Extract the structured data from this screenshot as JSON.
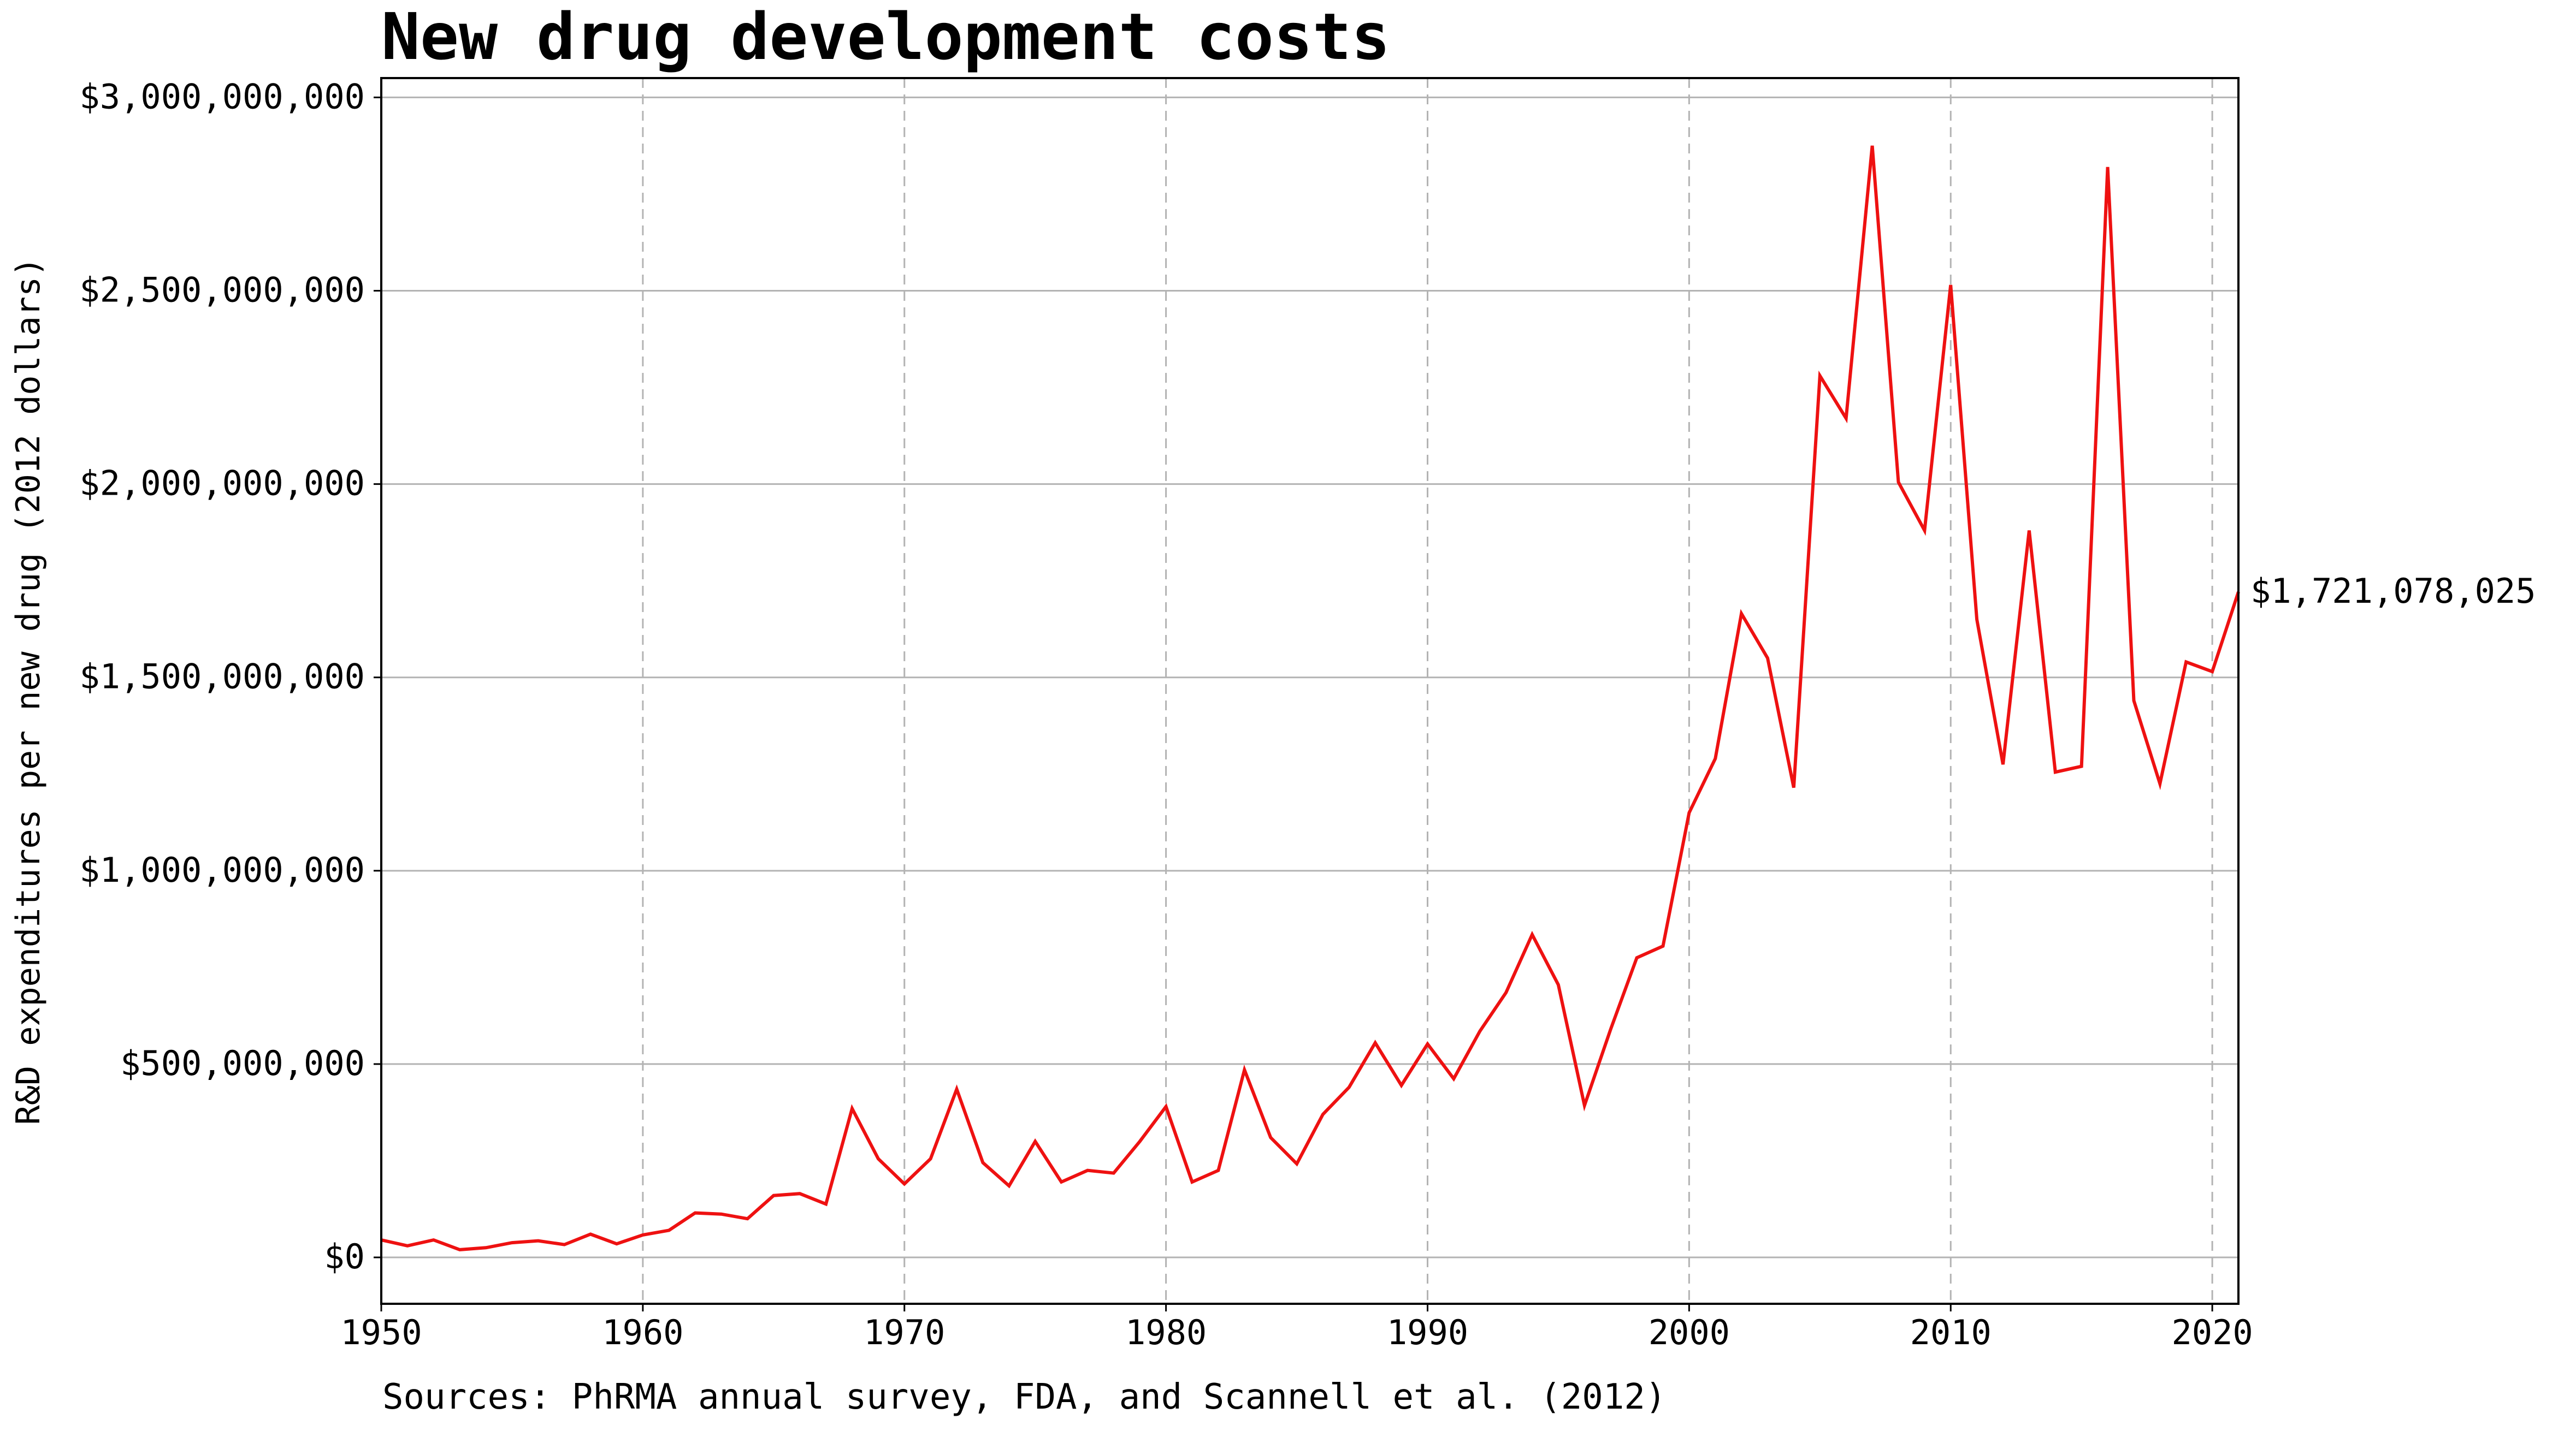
{
  "chart_data": {
    "type": "line",
    "title": "New drug development costs",
    "ylabel": "R&D expenditures per new drug (2012 dollars)",
    "xlabel": "",
    "source": "Sources: PhRMA annual survey, FDA, and Scannell et al. (2012)",
    "xlim": [
      1950,
      2021
    ],
    "ylim": [
      -120000000,
      3050000000
    ],
    "x_ticks": [
      1950,
      1960,
      1970,
      1980,
      1990,
      2000,
      2010,
      2020
    ],
    "y_ticks": [
      0,
      500000000,
      1000000000,
      1500000000,
      2000000000,
      2500000000,
      3000000000
    ],
    "y_tick_labels": [
      "$0",
      "$500,000,000",
      "$1,000,000,000",
      "$1,500,000,000",
      "$2,000,000,000",
      "$2,500,000,000",
      "$3,000,000,000"
    ],
    "grid": {
      "horizontal": "solid",
      "vertical": "dashed"
    },
    "line_color": "#ee1111",
    "end_label": "$1,721,078,025",
    "series": [
      {
        "x": [
          1950,
          1951,
          1952,
          1953,
          1954,
          1955,
          1956,
          1957,
          1958,
          1959,
          1960,
          1961,
          1962,
          1963,
          1964,
          1965,
          1966,
          1967,
          1968,
          1969,
          1970,
          1971,
          1972,
          1973,
          1974,
          1975,
          1976,
          1977,
          1978,
          1979,
          1980,
          1981,
          1982,
          1983,
          1984,
          1985,
          1986,
          1987,
          1988,
          1989,
          1990,
          1991,
          1992,
          1993,
          1994,
          1995,
          1996,
          1997,
          1998,
          1999,
          2000,
          2001,
          2002,
          2003,
          2004,
          2005,
          2006,
          2007,
          2008,
          2009,
          2010,
          2011,
          2012,
          2013,
          2014,
          2015,
          2016,
          2017,
          2018,
          2019,
          2020,
          2021
        ],
        "values": [
          45000000,
          30000000,
          45000000,
          20000000,
          25000000,
          38000000,
          43000000,
          33000000,
          60000000,
          35000000,
          58000000,
          70000000,
          115000000,
          112000000,
          100000000,
          160000000,
          165000000,
          138000000,
          385000000,
          255000000,
          190000000,
          255000000,
          435000000,
          245000000,
          185000000,
          300000000,
          195000000,
          225000000,
          218000000,
          300000000,
          390000000,
          195000000,
          225000000,
          485000000,
          310000000,
          242000000,
          370000000,
          440000000,
          555000000,
          445000000,
          552000000,
          462000000,
          585000000,
          685000000,
          835000000,
          705000000,
          393000000,
          590000000,
          775000000,
          805000000,
          1150000000,
          1290000000,
          1665000000,
          1550000000,
          1215000000,
          2280000000,
          2170000000,
          2875000000,
          2005000000,
          1880000000,
          2515000000,
          1650000000,
          1275000000,
          1880000000,
          1255000000,
          1270000000,
          2820000000,
          1440000000,
          1225000000,
          1540000000,
          1515000000,
          1721078025
        ]
      }
    ]
  }
}
